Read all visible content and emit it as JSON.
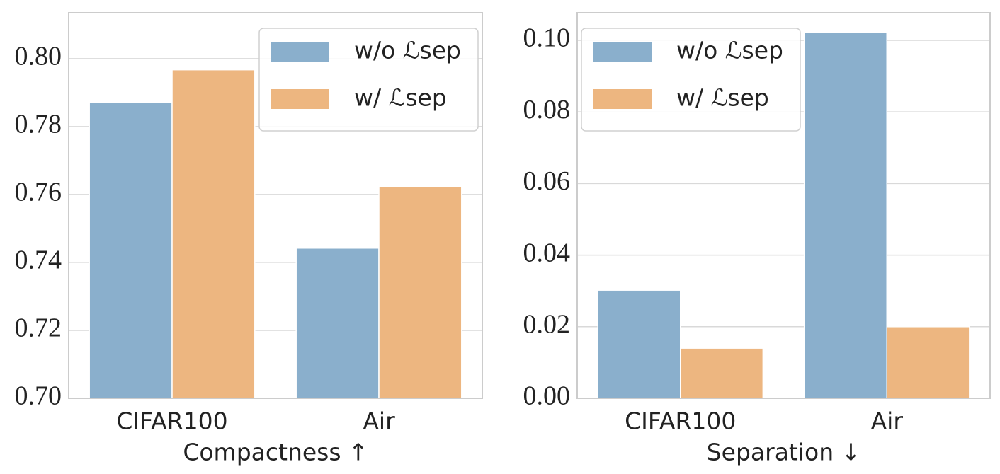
{
  "chart_data": [
    {
      "type": "bar",
      "xlabel": "Compactness ↑",
      "categories": [
        "CIFAR100",
        "Air"
      ],
      "series": [
        {
          "name": "w/o ℒsep",
          "color": "#8aafcc",
          "values": [
            0.7871,
            0.7442
          ]
        },
        {
          "name": "w/  ℒsep",
          "color": "#edb680",
          "values": [
            0.7967,
            0.7623
          ]
        }
      ],
      "ylim": [
        0.7,
        0.8135
      ],
      "yticks": [
        {
          "value": 0.7,
          "label": "0.70"
        },
        0.72,
        0.74,
        0.76,
        0.78,
        {
          "value": 0.8,
          "label": "0.80"
        }
      ],
      "grid": true,
      "legend": "upper right"
    },
    {
      "type": "bar",
      "xlabel": "Separation ↓",
      "categories": [
        "CIFAR100",
        "Air"
      ],
      "series": [
        {
          "name": "w/o ℒsep",
          "color": "#8aafcc",
          "values": [
            0.0302,
            0.1022
          ]
        },
        {
          "name": "w/  ℒsep",
          "color": "#edb680",
          "values": [
            0.014,
            0.02
          ]
        }
      ],
      "ylim": [
        0,
        0.1077
      ],
      "yticks": [
        {
          "value": 0,
          "label": "0.00"
        },
        0.02,
        0.04,
        0.06,
        0.08,
        {
          "value": 0.1,
          "label": "0.10"
        }
      ],
      "grid": true,
      "legend": "upper left"
    }
  ]
}
